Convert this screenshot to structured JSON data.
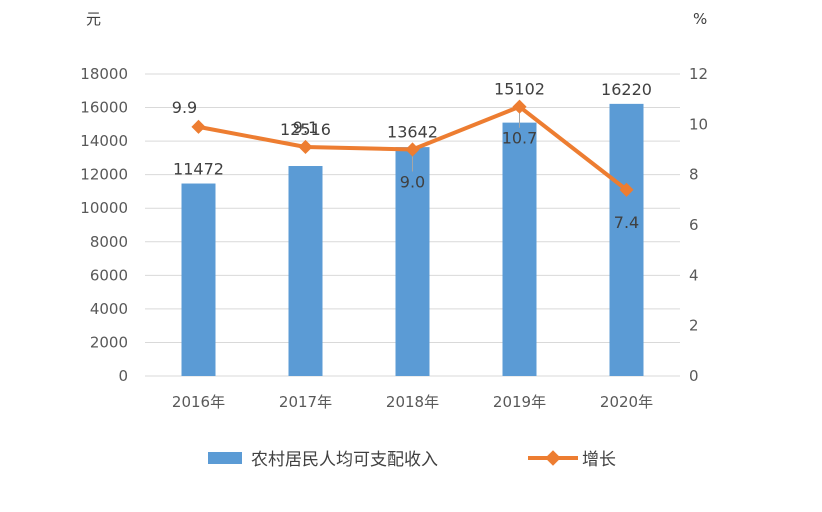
{
  "chart_data": {
    "type": "bar",
    "categories": [
      "2016年",
      "2017年",
      "2018年",
      "2019年",
      "2020年"
    ],
    "series": [
      {
        "name": "农村居民人均可支配收入",
        "type": "bar",
        "axis": "left",
        "color": "#5B9BD5",
        "values": [
          11472,
          12516,
          13642,
          15102,
          16220
        ]
      },
      {
        "name": "增长",
        "type": "line",
        "axis": "right",
        "color": "#ED7D31",
        "values": [
          9.9,
          9.1,
          9.0,
          10.7,
          7.4
        ]
      }
    ],
    "left_axis": {
      "unit": "元",
      "ylim": [
        0,
        18000
      ],
      "ticks": [
        0,
        2000,
        4000,
        6000,
        8000,
        10000,
        12000,
        14000,
        16000,
        18000
      ]
    },
    "right_axis": {
      "unit": "%",
      "ylim": [
        0,
        12
      ],
      "ticks": [
        0,
        2,
        4,
        6,
        8,
        10,
        12
      ]
    },
    "grid": true,
    "legend_position": "bottom"
  }
}
